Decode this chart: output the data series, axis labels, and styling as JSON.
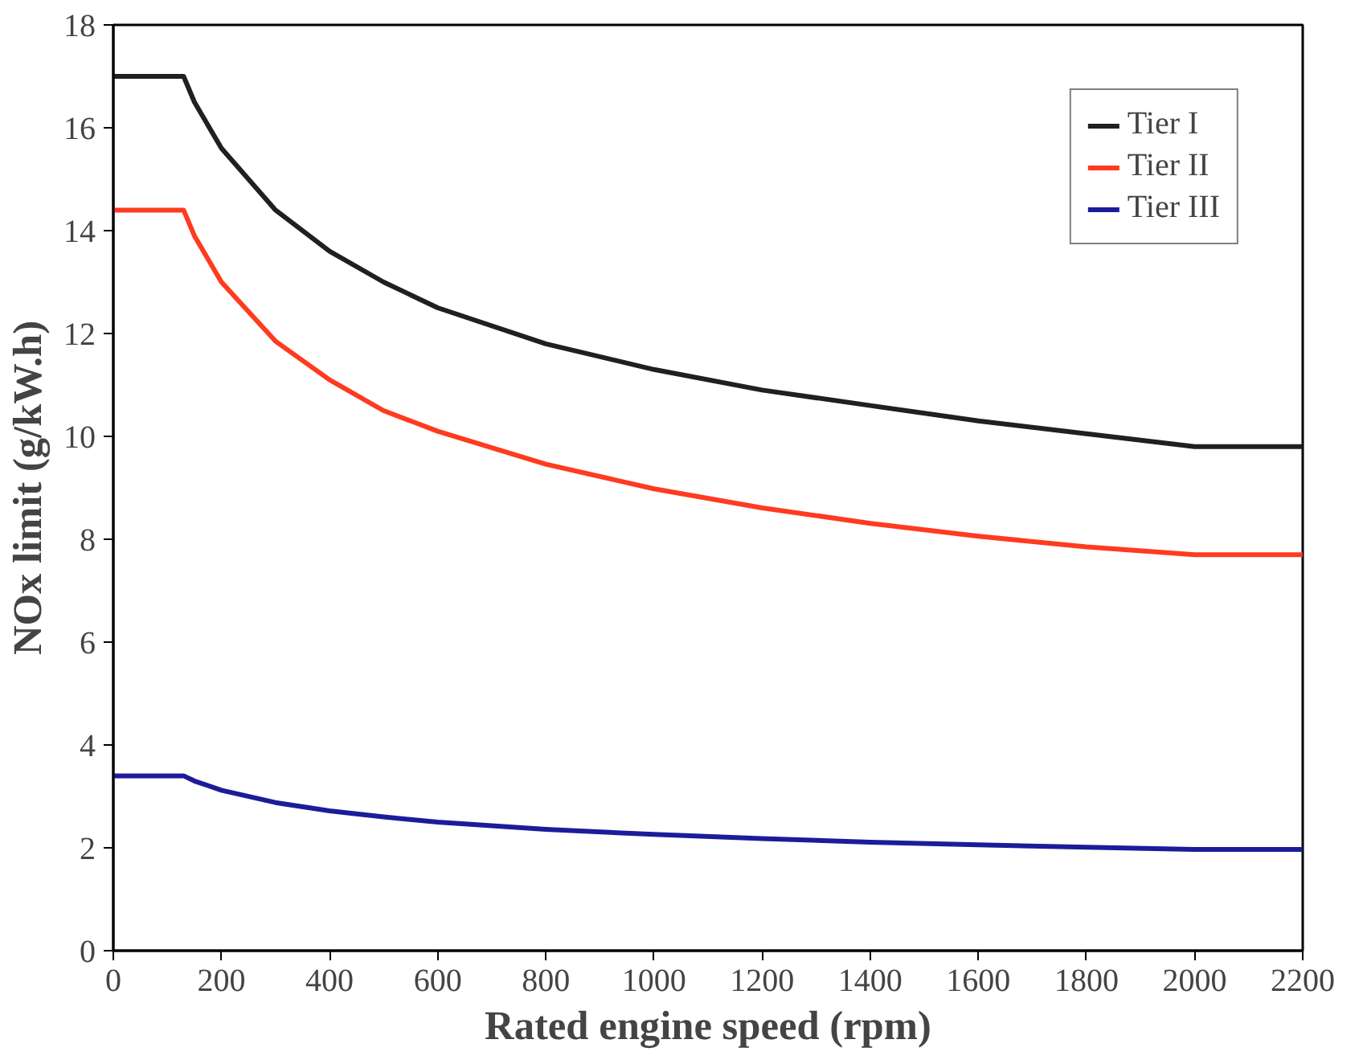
{
  "chart_data": {
    "type": "line",
    "xlabel": "Rated engine speed (rpm)",
    "ylabel": "NOx limit (g/kW.h)",
    "x": [
      0,
      130,
      150,
      200,
      300,
      400,
      500,
      600,
      800,
      1000,
      1200,
      1400,
      1600,
      1800,
      2000,
      2200
    ],
    "series": [
      {
        "name": "Tier I",
        "color": "#202020",
        "values": [
          17.0,
          17.0,
          16.5,
          15.6,
          14.4,
          13.6,
          13.0,
          12.5,
          11.8,
          11.3,
          10.9,
          10.6,
          10.3,
          10.05,
          9.8,
          9.8
        ]
      },
      {
        "name": "Tier II",
        "color": "#ff3b1f",
        "values": [
          14.4,
          14.4,
          13.9,
          13.0,
          11.85,
          11.1,
          10.5,
          10.1,
          9.46,
          8.98,
          8.61,
          8.31,
          8.06,
          7.85,
          7.7,
          7.7
        ]
      },
      {
        "name": "Tier III",
        "color": "#1c1c9a",
        "values": [
          3.4,
          3.4,
          3.3,
          3.12,
          2.88,
          2.72,
          2.6,
          2.5,
          2.36,
          2.26,
          2.18,
          2.11,
          2.06,
          2.01,
          1.97,
          1.97
        ]
      }
    ],
    "xlim": [
      0,
      2200
    ],
    "xticks": [
      0,
      200,
      400,
      600,
      800,
      1000,
      1200,
      1400,
      1600,
      1800,
      2000,
      2200
    ],
    "ylim": [
      0,
      18
    ],
    "yticks": [
      0,
      2,
      4,
      6,
      8,
      10,
      12,
      14,
      16,
      18
    ],
    "grid": false,
    "legend": "top right",
    "marker": "none",
    "line_style": "solid"
  }
}
